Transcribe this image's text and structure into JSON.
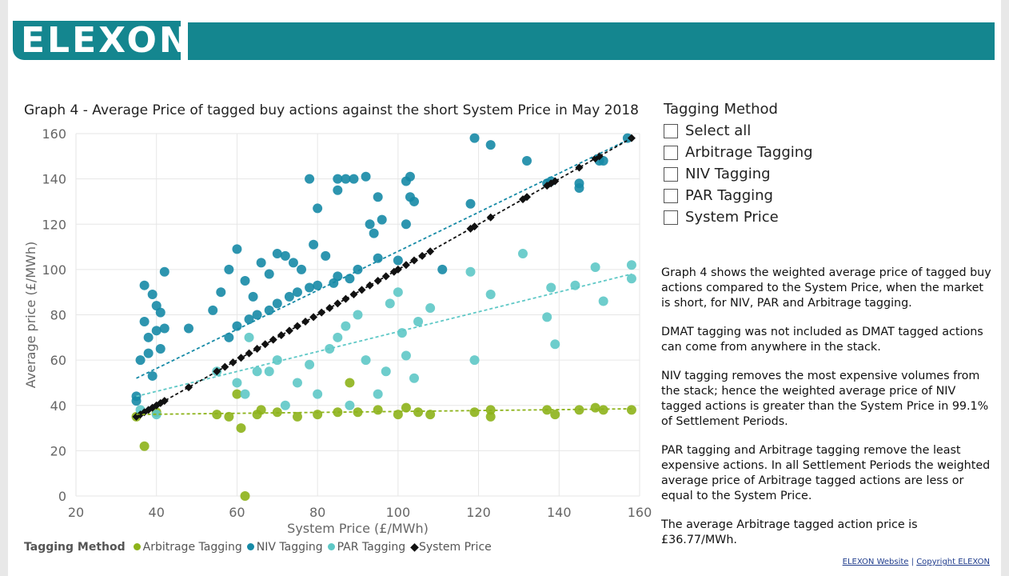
{
  "logo_text": "ELEXON",
  "slicer": {
    "title": "Tagging Method",
    "items": [
      "Select all",
      "Arbitrage Tagging",
      "NIV Tagging",
      "PAR Tagging",
      "System Price"
    ]
  },
  "description": [
    "Graph 4 shows the weighted average price of tagged buy actions compared to the System Price, when the market is short, for NIV, PAR and Arbitrage tagging.",
    "DMAT tagging was not included as DMAT tagged actions can come from anywhere in the stack.",
    "NIV tagging removes the most expensive volumes from the stack; hence the weighted average price of NIV tagged actions is greater than the System Price in 99.1% of Settlement Periods.",
    "PAR tagging and Arbitrage tagging remove the least expensive actions. In all Settlement Periods the weighted average price of Arbitrage tagged actions are less or equal to the System Price.",
    "The average Arbitrage tagged action price is £36.77/MWh."
  ],
  "footer": {
    "website": "ELEXON Website",
    "sep": "|",
    "copyright": "Copyright ELEXON"
  },
  "chart_data": {
    "type": "scatter",
    "title": "Graph 4 - Average Price of tagged buy actions against the short System Price in May 2018",
    "xlabel": "System Price (£/MWh)",
    "ylabel": "Average price (£/MWh)",
    "xlim": [
      20,
      160
    ],
    "ylim": [
      0,
      160
    ],
    "xticks": [
      20,
      40,
      60,
      80,
      100,
      120,
      140,
      160
    ],
    "yticks": [
      0,
      20,
      40,
      60,
      80,
      100,
      120,
      140,
      160
    ],
    "grid": true,
    "legend_title": "Tagging Method",
    "legend_position": "bottom-left",
    "series": [
      {
        "name": "Arbitrage Tagging",
        "color": "#8db31a",
        "marker": "circle",
        "trend": [
          [
            35,
            36
          ],
          [
            158,
            38.5
          ]
        ],
        "points": [
          [
            35,
            35
          ],
          [
            37,
            22
          ],
          [
            40,
            37
          ],
          [
            55,
            36
          ],
          [
            58,
            35
          ],
          [
            60,
            45
          ],
          [
            61,
            30
          ],
          [
            62,
            0
          ],
          [
            65,
            36
          ],
          [
            66,
            38
          ],
          [
            70,
            37
          ],
          [
            75,
            35
          ],
          [
            80,
            36
          ],
          [
            85,
            37
          ],
          [
            88,
            50
          ],
          [
            90,
            37
          ],
          [
            95,
            38
          ],
          [
            100,
            36
          ],
          [
            102,
            39
          ],
          [
            105,
            37
          ],
          [
            108,
            36
          ],
          [
            119,
            37
          ],
          [
            123,
            38
          ],
          [
            123,
            35
          ],
          [
            137,
            38
          ],
          [
            139,
            36
          ],
          [
            145,
            38
          ],
          [
            149,
            39
          ],
          [
            151,
            38
          ],
          [
            158,
            38
          ]
        ]
      },
      {
        "name": "NIV Tagging",
        "color": "#168aa6",
        "marker": "circle",
        "trend": [
          [
            35,
            52
          ],
          [
            158,
            158
          ]
        ],
        "points": [
          [
            35,
            44
          ],
          [
            35,
            42
          ],
          [
            36,
            60
          ],
          [
            37,
            93
          ],
          [
            37,
            77
          ],
          [
            38,
            70
          ],
          [
            38,
            63
          ],
          [
            39,
            89
          ],
          [
            39,
            53
          ],
          [
            40,
            84
          ],
          [
            40,
            73
          ],
          [
            41,
            81
          ],
          [
            41,
            65
          ],
          [
            42,
            99
          ],
          [
            42,
            74
          ],
          [
            48,
            74
          ],
          [
            54,
            82
          ],
          [
            56,
            90
          ],
          [
            58,
            100
          ],
          [
            60,
            109
          ],
          [
            62,
            95
          ],
          [
            64,
            88
          ],
          [
            66,
            103
          ],
          [
            68,
            98
          ],
          [
            70,
            107
          ],
          [
            72,
            106
          ],
          [
            74,
            103
          ],
          [
            76,
            100
          ],
          [
            78,
            140
          ],
          [
            79,
            111
          ],
          [
            80,
            127
          ],
          [
            82,
            106
          ],
          [
            84,
            94
          ],
          [
            85,
            135
          ],
          [
            85,
            140
          ],
          [
            87,
            140
          ],
          [
            89,
            140
          ],
          [
            92,
            141
          ],
          [
            93,
            120
          ],
          [
            94,
            116
          ],
          [
            95,
            132
          ],
          [
            96,
            122
          ],
          [
            102,
            139
          ],
          [
            103,
            141
          ],
          [
            103,
            132
          ],
          [
            104,
            130
          ],
          [
            102,
            120
          ],
          [
            111,
            100
          ],
          [
            118,
            129
          ],
          [
            119,
            158
          ],
          [
            123,
            155
          ],
          [
            132,
            148
          ],
          [
            137,
            138
          ],
          [
            138,
            139
          ],
          [
            145,
            138
          ],
          [
            145,
            136
          ],
          [
            150,
            148
          ],
          [
            151,
            148
          ],
          [
            157,
            158
          ],
          [
            60,
            75
          ],
          [
            65,
            80
          ],
          [
            70,
            85
          ],
          [
            75,
            90
          ],
          [
            80,
            93
          ],
          [
            85,
            97
          ],
          [
            90,
            100
          ],
          [
            95,
            105
          ],
          [
            100,
            104
          ],
          [
            58,
            70
          ],
          [
            63,
            78
          ],
          [
            68,
            82
          ],
          [
            73,
            88
          ],
          [
            78,
            92
          ],
          [
            88,
            96
          ]
        ]
      },
      {
        "name": "PAR Tagging",
        "color": "#5ec8c6",
        "marker": "circle",
        "trend": [
          [
            35,
            44
          ],
          [
            158,
            98
          ]
        ],
        "points": [
          [
            36,
            38
          ],
          [
            40,
            36
          ],
          [
            55,
            55
          ],
          [
            60,
            50
          ],
          [
            62,
            45
          ],
          [
            65,
            55
          ],
          [
            70,
            60
          ],
          [
            72,
            40
          ],
          [
            75,
            50
          ],
          [
            78,
            58
          ],
          [
            80,
            45
          ],
          [
            83,
            65
          ],
          [
            85,
            70
          ],
          [
            88,
            40
          ],
          [
            90,
            80
          ],
          [
            92,
            60
          ],
          [
            95,
            45
          ],
          [
            98,
            85
          ],
          [
            100,
            90
          ],
          [
            101,
            72
          ],
          [
            102,
            62
          ],
          [
            104,
            52
          ],
          [
            105,
            77
          ],
          [
            108,
            83
          ],
          [
            118,
            99
          ],
          [
            119,
            60
          ],
          [
            123,
            89
          ],
          [
            131,
            107
          ],
          [
            137,
            79
          ],
          [
            138,
            92
          ],
          [
            139,
            67
          ],
          [
            144,
            93
          ],
          [
            149,
            101
          ],
          [
            151,
            86
          ],
          [
            158,
            102
          ],
          [
            158,
            96
          ],
          [
            97,
            55
          ],
          [
            87,
            75
          ],
          [
            63,
            70
          ],
          [
            68,
            55
          ]
        ]
      },
      {
        "name": "System Price",
        "color": "#111111",
        "marker": "diamond",
        "trend": [
          [
            35,
            35
          ],
          [
            158,
            158
          ]
        ],
        "points": [
          [
            35,
            35
          ],
          [
            36,
            36
          ],
          [
            37,
            37
          ],
          [
            38,
            38
          ],
          [
            39,
            39
          ],
          [
            40,
            40
          ],
          [
            41,
            41
          ],
          [
            42,
            42
          ],
          [
            48,
            48
          ],
          [
            55,
            55
          ],
          [
            57,
            57
          ],
          [
            59,
            59
          ],
          [
            61,
            61
          ],
          [
            63,
            63
          ],
          [
            65,
            65
          ],
          [
            67,
            67
          ],
          [
            69,
            69
          ],
          [
            71,
            71
          ],
          [
            73,
            73
          ],
          [
            75,
            75
          ],
          [
            77,
            77
          ],
          [
            79,
            79
          ],
          [
            81,
            81
          ],
          [
            83,
            83
          ],
          [
            85,
            85
          ],
          [
            87,
            87
          ],
          [
            89,
            89
          ],
          [
            91,
            91
          ],
          [
            93,
            93
          ],
          [
            95,
            95
          ],
          [
            97,
            97
          ],
          [
            99,
            99
          ],
          [
            100,
            100
          ],
          [
            102,
            102
          ],
          [
            104,
            104
          ],
          [
            106,
            106
          ],
          [
            108,
            108
          ],
          [
            118,
            118
          ],
          [
            119,
            119
          ],
          [
            123,
            123
          ],
          [
            131,
            131
          ],
          [
            132,
            132
          ],
          [
            137,
            137
          ],
          [
            138,
            138
          ],
          [
            139,
            139
          ],
          [
            145,
            145
          ],
          [
            149,
            149
          ],
          [
            150,
            150
          ],
          [
            158,
            158
          ]
        ]
      }
    ]
  }
}
